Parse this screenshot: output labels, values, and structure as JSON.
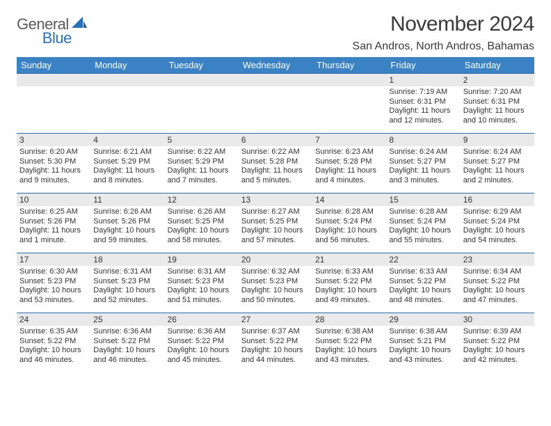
{
  "colors": {
    "header_bg": "#3a82c4",
    "header_text": "#ffffff",
    "daynum_bg": "#e9e9e9",
    "row_divider": "#2f6aa8",
    "body_text": "#333333",
    "logo_gray": "#5a5a5a",
    "logo_blue": "#2a70b8",
    "page_bg": "#ffffff"
  },
  "logo": {
    "word1": "General",
    "word2": "Blue"
  },
  "title": {
    "month": "November 2024",
    "location": "San Andros, North Andros, Bahamas"
  },
  "weekdays": [
    "Sunday",
    "Monday",
    "Tuesday",
    "Wednesday",
    "Thursday",
    "Friday",
    "Saturday"
  ],
  "weeks": [
    [
      {
        "n": "",
        "sr": "",
        "ss": "",
        "dl": ""
      },
      {
        "n": "",
        "sr": "",
        "ss": "",
        "dl": ""
      },
      {
        "n": "",
        "sr": "",
        "ss": "",
        "dl": ""
      },
      {
        "n": "",
        "sr": "",
        "ss": "",
        "dl": ""
      },
      {
        "n": "",
        "sr": "",
        "ss": "",
        "dl": ""
      },
      {
        "n": "1",
        "sr": "Sunrise: 7:19 AM",
        "ss": "Sunset: 6:31 PM",
        "dl": "Daylight: 11 hours and 12 minutes."
      },
      {
        "n": "2",
        "sr": "Sunrise: 7:20 AM",
        "ss": "Sunset: 6:31 PM",
        "dl": "Daylight: 11 hours and 10 minutes."
      }
    ],
    [
      {
        "n": "3",
        "sr": "Sunrise: 6:20 AM",
        "ss": "Sunset: 5:30 PM",
        "dl": "Daylight: 11 hours and 9 minutes."
      },
      {
        "n": "4",
        "sr": "Sunrise: 6:21 AM",
        "ss": "Sunset: 5:29 PM",
        "dl": "Daylight: 11 hours and 8 minutes."
      },
      {
        "n": "5",
        "sr": "Sunrise: 6:22 AM",
        "ss": "Sunset: 5:29 PM",
        "dl": "Daylight: 11 hours and 7 minutes."
      },
      {
        "n": "6",
        "sr": "Sunrise: 6:22 AM",
        "ss": "Sunset: 5:28 PM",
        "dl": "Daylight: 11 hours and 5 minutes."
      },
      {
        "n": "7",
        "sr": "Sunrise: 6:23 AM",
        "ss": "Sunset: 5:28 PM",
        "dl": "Daylight: 11 hours and 4 minutes."
      },
      {
        "n": "8",
        "sr": "Sunrise: 6:24 AM",
        "ss": "Sunset: 5:27 PM",
        "dl": "Daylight: 11 hours and 3 minutes."
      },
      {
        "n": "9",
        "sr": "Sunrise: 6:24 AM",
        "ss": "Sunset: 5:27 PM",
        "dl": "Daylight: 11 hours and 2 minutes."
      }
    ],
    [
      {
        "n": "10",
        "sr": "Sunrise: 6:25 AM",
        "ss": "Sunset: 5:26 PM",
        "dl": "Daylight: 11 hours and 1 minute."
      },
      {
        "n": "11",
        "sr": "Sunrise: 6:26 AM",
        "ss": "Sunset: 5:26 PM",
        "dl": "Daylight: 10 hours and 59 minutes."
      },
      {
        "n": "12",
        "sr": "Sunrise: 6:26 AM",
        "ss": "Sunset: 5:25 PM",
        "dl": "Daylight: 10 hours and 58 minutes."
      },
      {
        "n": "13",
        "sr": "Sunrise: 6:27 AM",
        "ss": "Sunset: 5:25 PM",
        "dl": "Daylight: 10 hours and 57 minutes."
      },
      {
        "n": "14",
        "sr": "Sunrise: 6:28 AM",
        "ss": "Sunset: 5:24 PM",
        "dl": "Daylight: 10 hours and 56 minutes."
      },
      {
        "n": "15",
        "sr": "Sunrise: 6:28 AM",
        "ss": "Sunset: 5:24 PM",
        "dl": "Daylight: 10 hours and 55 minutes."
      },
      {
        "n": "16",
        "sr": "Sunrise: 6:29 AM",
        "ss": "Sunset: 5:24 PM",
        "dl": "Daylight: 10 hours and 54 minutes."
      }
    ],
    [
      {
        "n": "17",
        "sr": "Sunrise: 6:30 AM",
        "ss": "Sunset: 5:23 PM",
        "dl": "Daylight: 10 hours and 53 minutes."
      },
      {
        "n": "18",
        "sr": "Sunrise: 6:31 AM",
        "ss": "Sunset: 5:23 PM",
        "dl": "Daylight: 10 hours and 52 minutes."
      },
      {
        "n": "19",
        "sr": "Sunrise: 6:31 AM",
        "ss": "Sunset: 5:23 PM",
        "dl": "Daylight: 10 hours and 51 minutes."
      },
      {
        "n": "20",
        "sr": "Sunrise: 6:32 AM",
        "ss": "Sunset: 5:23 PM",
        "dl": "Daylight: 10 hours and 50 minutes."
      },
      {
        "n": "21",
        "sr": "Sunrise: 6:33 AM",
        "ss": "Sunset: 5:22 PM",
        "dl": "Daylight: 10 hours and 49 minutes."
      },
      {
        "n": "22",
        "sr": "Sunrise: 6:33 AM",
        "ss": "Sunset: 5:22 PM",
        "dl": "Daylight: 10 hours and 48 minutes."
      },
      {
        "n": "23",
        "sr": "Sunrise: 6:34 AM",
        "ss": "Sunset: 5:22 PM",
        "dl": "Daylight: 10 hours and 47 minutes."
      }
    ],
    [
      {
        "n": "24",
        "sr": "Sunrise: 6:35 AM",
        "ss": "Sunset: 5:22 PM",
        "dl": "Daylight: 10 hours and 46 minutes."
      },
      {
        "n": "25",
        "sr": "Sunrise: 6:36 AM",
        "ss": "Sunset: 5:22 PM",
        "dl": "Daylight: 10 hours and 46 minutes."
      },
      {
        "n": "26",
        "sr": "Sunrise: 6:36 AM",
        "ss": "Sunset: 5:22 PM",
        "dl": "Daylight: 10 hours and 45 minutes."
      },
      {
        "n": "27",
        "sr": "Sunrise: 6:37 AM",
        "ss": "Sunset: 5:22 PM",
        "dl": "Daylight: 10 hours and 44 minutes."
      },
      {
        "n": "28",
        "sr": "Sunrise: 6:38 AM",
        "ss": "Sunset: 5:22 PM",
        "dl": "Daylight: 10 hours and 43 minutes."
      },
      {
        "n": "29",
        "sr": "Sunrise: 6:38 AM",
        "ss": "Sunset: 5:21 PM",
        "dl": "Daylight: 10 hours and 43 minutes."
      },
      {
        "n": "30",
        "sr": "Sunrise: 6:39 AM",
        "ss": "Sunset: 5:22 PM",
        "dl": "Daylight: 10 hours and 42 minutes."
      }
    ]
  ]
}
